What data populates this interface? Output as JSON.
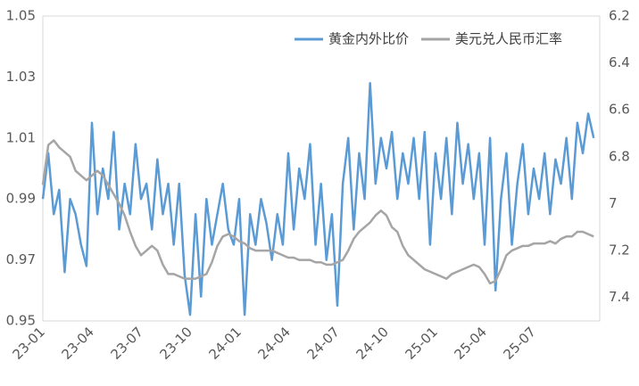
{
  "chart_data": {
    "type": "line",
    "categories": [
      "23-01",
      null,
      null,
      null,
      null,
      null,
      null,
      null,
      null,
      "23-04",
      null,
      null,
      null,
      null,
      null,
      null,
      null,
      null,
      "23-07",
      null,
      null,
      null,
      null,
      null,
      null,
      null,
      null,
      "23-10",
      null,
      null,
      null,
      null,
      null,
      null,
      null,
      null,
      "24-01",
      null,
      null,
      null,
      null,
      null,
      null,
      null,
      null,
      "24-04",
      null,
      null,
      null,
      null,
      null,
      null,
      null,
      null,
      "24-07",
      null,
      null,
      null,
      null,
      null,
      null,
      null,
      null,
      "24-10",
      null,
      null,
      null,
      null,
      null,
      null,
      null,
      null,
      "25-01",
      null,
      null,
      null,
      null,
      null,
      null,
      null,
      null,
      "25-04",
      null,
      null,
      null,
      null,
      null,
      null,
      null,
      null,
      "25-07",
      null,
      null,
      null,
      null,
      null,
      null,
      null,
      null,
      null,
      null,
      null
    ],
    "series": [
      {
        "name": "黄金内外比价",
        "color": "#5b9bd5",
        "values": [
          0.99,
          1.005,
          0.985,
          0.993,
          0.966,
          0.99,
          0.985,
          0.975,
          0.968,
          1.015,
          0.985,
          1.0,
          0.99,
          1.012,
          0.98,
          0.995,
          0.985,
          1.008,
          0.99,
          0.995,
          0.98,
          1.003,
          0.985,
          0.995,
          0.975,
          0.995,
          0.965,
          0.952,
          0.985,
          0.958,
          0.99,
          0.975,
          0.985,
          0.995,
          0.98,
          0.975,
          0.99,
          0.952,
          0.985,
          0.975,
          0.99,
          0.982,
          0.97,
          0.985,
          0.975,
          1.005,
          0.98,
          1.0,
          0.99,
          1.008,
          0.975,
          0.995,
          0.97,
          0.985,
          0.955,
          0.995,
          1.01,
          0.98,
          1.005,
          0.99,
          1.028,
          0.995,
          1.01,
          1.0,
          1.012,
          0.99,
          1.005,
          0.995,
          1.01,
          0.99,
          1.012,
          0.975,
          1.005,
          0.99,
          1.01,
          0.985,
          1.015,
          0.995,
          1.008,
          0.99,
          1.005,
          0.975,
          1.01,
          0.96,
          0.99,
          1.005,
          0.975,
          0.995,
          1.008,
          0.985,
          1.0,
          0.99,
          1.005,
          0.985,
          1.003,
          0.995,
          1.01,
          0.99,
          1.015,
          1.005,
          1.018,
          1.01
        ]
      },
      {
        "name": "美元兑人民币汇率",
        "color": "#a5a5a5",
        "axis": "y2",
        "values": [
          6.92,
          6.75,
          6.73,
          6.76,
          6.78,
          6.8,
          6.86,
          6.88,
          6.9,
          6.88,
          6.86,
          6.88,
          6.92,
          6.96,
          7.0,
          7.05,
          7.12,
          7.18,
          7.22,
          7.2,
          7.18,
          7.2,
          7.26,
          7.3,
          7.3,
          7.31,
          7.32,
          7.32,
          7.32,
          7.31,
          7.3,
          7.25,
          7.18,
          7.14,
          7.13,
          7.14,
          7.16,
          7.17,
          7.19,
          7.2,
          7.2,
          7.2,
          7.2,
          7.21,
          7.22,
          7.23,
          7.23,
          7.24,
          7.24,
          7.24,
          7.25,
          7.25,
          7.26,
          7.26,
          7.25,
          7.24,
          7.2,
          7.15,
          7.12,
          7.1,
          7.08,
          7.05,
          7.03,
          7.05,
          7.1,
          7.12,
          7.18,
          7.22,
          7.24,
          7.26,
          7.28,
          7.29,
          7.3,
          7.31,
          7.32,
          7.3,
          7.29,
          7.28,
          7.27,
          7.26,
          7.27,
          7.3,
          7.34,
          7.33,
          7.28,
          7.22,
          7.2,
          7.19,
          7.18,
          7.18,
          7.17,
          7.17,
          7.17,
          7.16,
          7.17,
          7.15,
          7.14,
          7.14,
          7.12,
          7.12,
          7.13,
          7.14
        ]
      }
    ],
    "ylim": [
      0.95,
      1.05
    ],
    "yticks": [
      0.95,
      0.97,
      0.99,
      1.01,
      1.03,
      1.05
    ],
    "y2lim": [
      7.5,
      6.2
    ],
    "y2ticks": [
      6.2,
      6.4,
      6.6,
      6.8,
      7,
      7.2,
      7.4
    ],
    "grid": false,
    "legend": "top-right"
  }
}
